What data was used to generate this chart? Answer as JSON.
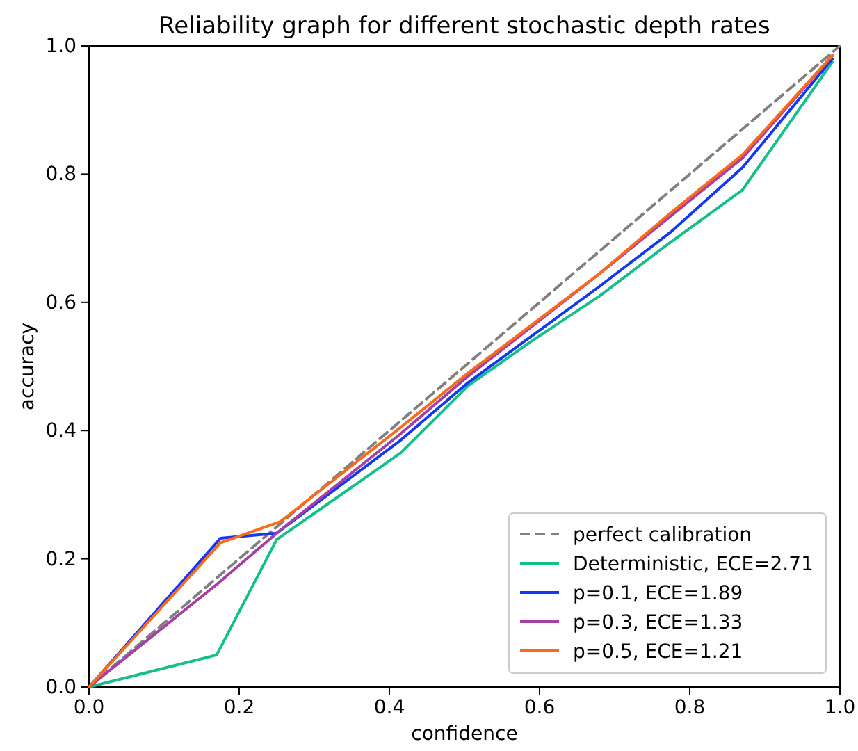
{
  "chart_data": {
    "type": "line",
    "title": "Reliability graph for different stochastic depth rates",
    "xlabel": "confidence",
    "ylabel": "accuracy",
    "xlim": [
      0,
      1
    ],
    "ylim": [
      0,
      1
    ],
    "xticks": [
      {
        "value": 0,
        "label": "0.0"
      },
      0.2,
      0.4,
      0.6,
      0.8,
      {
        "value": 1,
        "label": "1.0"
      }
    ],
    "yticks": [
      {
        "value": 0,
        "label": "0.0"
      },
      0.2,
      0.4,
      0.6,
      0.8,
      {
        "value": 1,
        "label": "1.0"
      }
    ],
    "legend": "bottom right",
    "grid": false,
    "series": [
      {
        "name": "perfect calibration",
        "color": "#808080",
        "line_style": "dashed",
        "x": [
          0,
          1
        ],
        "values": [
          0,
          1
        ]
      },
      {
        "name": "Deterministic, ECE=2.71",
        "color": "#14bf8c",
        "x": [
          0,
          0.17,
          0.25,
          0.415,
          0.505,
          0.59,
          0.68,
          0.77,
          0.87,
          0.99
        ],
        "values": [
          0,
          0.05,
          0.23,
          0.365,
          0.47,
          0.54,
          0.61,
          0.69,
          0.775,
          0.975
        ]
      },
      {
        "name": "p=0.1, ECE=1.89",
        "color": "#1237f5",
        "x": [
          0,
          0.175,
          0.25,
          0.415,
          0.505,
          0.68,
          0.775,
          0.87,
          0.99
        ],
        "values": [
          0,
          0.232,
          0.24,
          0.385,
          0.475,
          0.625,
          0.71,
          0.81,
          0.98
        ]
      },
      {
        "name": "p=0.3, ECE=1.33",
        "color": "#a53ea5",
        "x": [
          0,
          0.17,
          0.25,
          0.415,
          0.505,
          0.68,
          0.775,
          0.87,
          0.99
        ],
        "values": [
          0,
          0.16,
          0.24,
          0.395,
          0.485,
          0.645,
          0.735,
          0.825,
          0.985
        ]
      },
      {
        "name": "p=0.5, ECE=1.21",
        "color": "#fa6a1a",
        "x": [
          0,
          0.175,
          0.255,
          0.415,
          0.505,
          0.68,
          0.775,
          0.87,
          0.99
        ],
        "values": [
          0,
          0.225,
          0.258,
          0.405,
          0.49,
          0.645,
          0.74,
          0.83,
          0.985
        ]
      }
    ]
  }
}
